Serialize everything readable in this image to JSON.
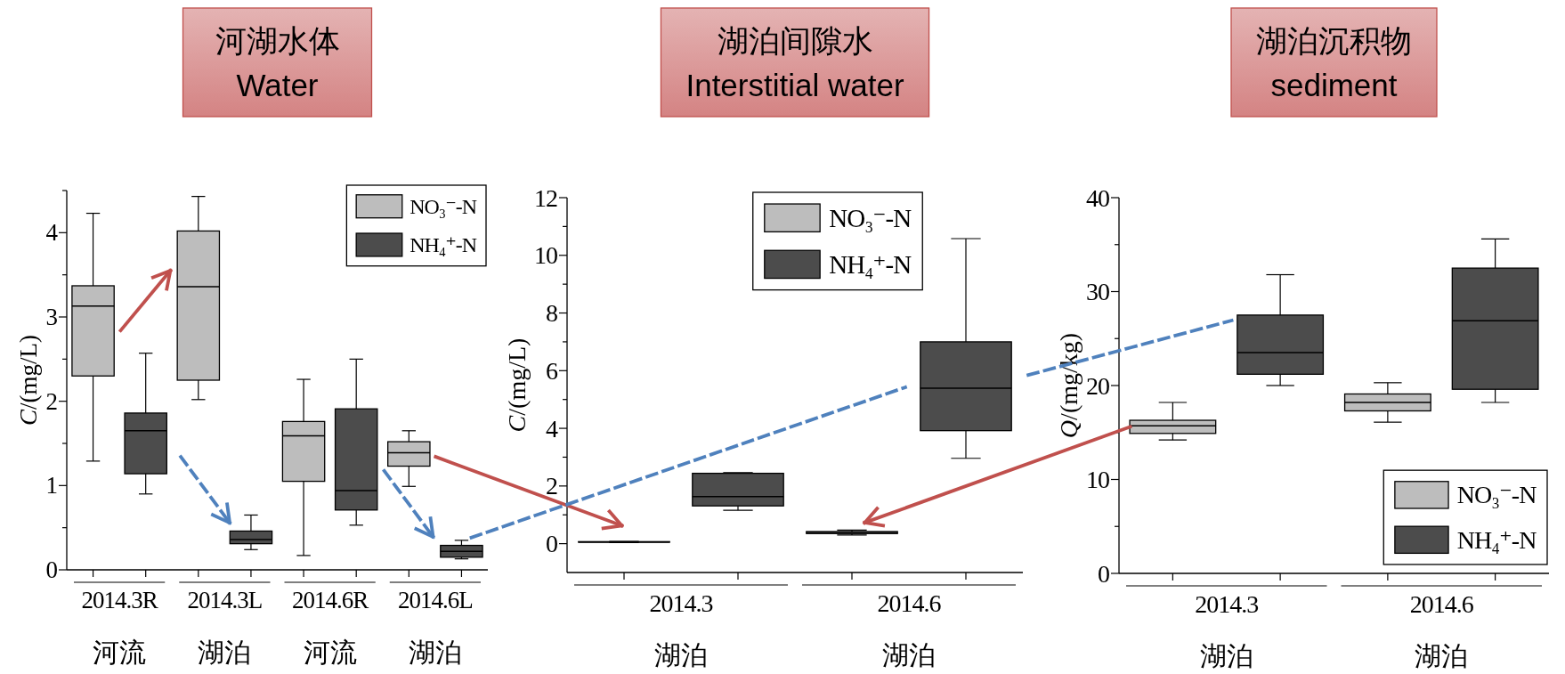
{
  "chart_data": [
    {
      "type": "box",
      "title": "河湖水体",
      "subtitle": "Water",
      "ylabel": "C/(mg/L)",
      "categories": [
        "2014.3R",
        "2014.3L",
        "2014.6R",
        "2014.6L"
      ],
      "series": [
        {
          "name": "NO₃⁻-N",
          "color": "#bdbdbd",
          "boxes": [
            {
              "low": 1.29,
              "q1": 2.3,
              "median": 3.13,
              "q3": 3.37,
              "high": 4.23
            },
            {
              "low": 2.02,
              "q1": 2.25,
              "median": 3.36,
              "q3": 4.02,
              "high": 4.43
            },
            {
              "low": 0.17,
              "q1": 1.05,
              "median": 1.59,
              "q3": 1.76,
              "high": 2.26
            },
            {
              "low": 0.99,
              "q1": 1.23,
              "median": 1.39,
              "q3": 1.52,
              "high": 1.65
            }
          ]
        },
        {
          "name": "NH₄⁺-N",
          "color": "#4c4c4c",
          "boxes": [
            {
              "low": 0.9,
              "q1": 1.14,
              "median": 1.65,
              "q3": 1.86,
              "high": 2.57
            },
            {
              "low": 0.24,
              "q1": 0.31,
              "median": 0.36,
              "q3": 0.46,
              "high": 0.65
            },
            {
              "low": 0.53,
              "q1": 0.71,
              "median": 0.94,
              "q3": 1.91,
              "high": 2.5
            },
            {
              "low": 0.13,
              "q1": 0.15,
              "median": 0.22,
              "q3": 0.29,
              "high": 0.35
            }
          ]
        }
      ],
      "ylim": [
        0,
        4.5
      ],
      "yticks": [
        0,
        {
          "value": 0.5,
          "label": null
        },
        1,
        {
          "value": 1.5,
          "label": null
        },
        2,
        {
          "value": 2.5,
          "label": null
        },
        3,
        {
          "value": 3.5,
          "label": null
        },
        4,
        {
          "value": 4.5,
          "label": null
        }
      ],
      "legend": "top right",
      "annotations": [
        "河流",
        "湖泊",
        "河流",
        "湖泊"
      ]
    },
    {
      "type": "box",
      "title": "湖泊间隙水",
      "subtitle": "Interstitial water",
      "ylabel": "C/(mg/L)",
      "categories": [
        "2014.3",
        "2014.6"
      ],
      "series": [
        {
          "name": "NO₃⁻-N",
          "color": "#bdbdbd",
          "boxes": [
            {
              "low": 0.04,
              "q1": 0.05,
              "median": 0.06,
              "q3": 0.07,
              "high": 0.08
            },
            {
              "low": 0.3,
              "q1": 0.35,
              "median": 0.39,
              "q3": 0.42,
              "high": 0.47
            }
          ]
        },
        {
          "name": "NH₄⁺-N",
          "color": "#4c4c4c",
          "boxes": [
            {
              "low": 1.16,
              "q1": 1.31,
              "median": 1.63,
              "q3": 2.44,
              "high": 2.46
            },
            {
              "low": 2.96,
              "q1": 3.92,
              "median": 5.39,
              "q3": 7.0,
              "high": 10.58
            }
          ]
        }
      ],
      "ylim": [
        -1,
        12
      ],
      "yticks": [
        0,
        {
          "value": 1,
          "label": null
        },
        2,
        {
          "value": 3,
          "label": null
        },
        4,
        {
          "value": 5,
          "label": null
        },
        6,
        {
          "value": 7,
          "label": null
        },
        8,
        {
          "value": 9,
          "label": null
        },
        10,
        {
          "value": 11,
          "label": null
        },
        12
      ],
      "legend": "top",
      "annotations": [
        "湖泊",
        "湖泊"
      ]
    },
    {
      "type": "box",
      "title": "湖泊沉积物",
      "subtitle": "sediment",
      "ylabel": "Q/(mg/kg)",
      "categories": [
        "2014.3",
        "2014.6"
      ],
      "series": [
        {
          "name": "NO₃⁻-N",
          "color": "#bdbdbd",
          "boxes": [
            {
              "low": 14.2,
              "q1": 14.9,
              "median": 15.7,
              "q3": 16.3,
              "high": 18.2
            },
            {
              "low": 16.1,
              "q1": 17.3,
              "median": 18.2,
              "q3": 19.1,
              "high": 20.3
            }
          ]
        },
        {
          "name": "NH₄⁺-N",
          "color": "#4c4c4c",
          "boxes": [
            {
              "low": 20.0,
              "q1": 21.2,
              "median": 23.5,
              "q3": 27.5,
              "high": 31.8
            },
            {
              "low": 18.2,
              "q1": 19.6,
              "median": 26.9,
              "q3": 32.5,
              "high": 35.6
            }
          ]
        }
      ],
      "ylim": [
        0,
        40
      ],
      "yticks": [
        0,
        {
          "value": 5,
          "label": null
        },
        10,
        {
          "value": 15,
          "label": null
        },
        20,
        {
          "value": 25,
          "label": null
        },
        30,
        {
          "value": 35,
          "label": null
        },
        40
      ],
      "legend": "bottom right",
      "annotations": [
        "湖泊",
        "湖泊"
      ]
    }
  ]
}
